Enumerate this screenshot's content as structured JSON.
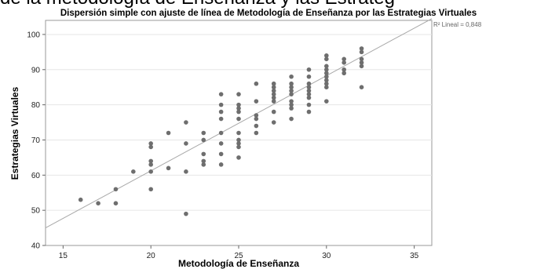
{
  "header_fragment": "de la metodología de Enseñanza y las Estrateg",
  "chart_data": {
    "type": "scatter",
    "title": "Dispersión simple con ajuste de línea de Metodología de Enseñanza por las Estrategias Virtuales",
    "xlabel": "Metodología de Enseñanza",
    "ylabel": "Estrategias Virtuales",
    "xlim": [
      14,
      36
    ],
    "ylim": [
      40,
      104
    ],
    "xticks": [
      15,
      20,
      25,
      30,
      35
    ],
    "yticks": [
      40,
      50,
      60,
      70,
      80,
      90,
      100
    ],
    "grid": "horizontal",
    "fit_line": {
      "label": "R² Lineal = 0,848",
      "x": [
        14,
        36
      ],
      "y": [
        45.0,
        104.5
      ]
    },
    "colors": {
      "points": "#6e6e6e",
      "line": "#a8a8a8",
      "grid": "#e6e6e6"
    },
    "points": [
      [
        16,
        53
      ],
      [
        17,
        52
      ],
      [
        18,
        52
      ],
      [
        18,
        56
      ],
      [
        19,
        61
      ],
      [
        20,
        56
      ],
      [
        20,
        61
      ],
      [
        20,
        63
      ],
      [
        20,
        64
      ],
      [
        20,
        68
      ],
      [
        20,
        69
      ],
      [
        21,
        62
      ],
      [
        21,
        72
      ],
      [
        22,
        49
      ],
      [
        22,
        61
      ],
      [
        22,
        69
      ],
      [
        22,
        75
      ],
      [
        23,
        63
      ],
      [
        23,
        64
      ],
      [
        23,
        66
      ],
      [
        23,
        70
      ],
      [
        23,
        72
      ],
      [
        24,
        63
      ],
      [
        24,
        66
      ],
      [
        24,
        69
      ],
      [
        24,
        72
      ],
      [
        24,
        76
      ],
      [
        24,
        78
      ],
      [
        24,
        80
      ],
      [
        24,
        83
      ],
      [
        25,
        65
      ],
      [
        25,
        68
      ],
      [
        25,
        69
      ],
      [
        25,
        70
      ],
      [
        25,
        72
      ],
      [
        25,
        76
      ],
      [
        25,
        78
      ],
      [
        25,
        79
      ],
      [
        25,
        80
      ],
      [
        25,
        83
      ],
      [
        26,
        72
      ],
      [
        26,
        74
      ],
      [
        26,
        76
      ],
      [
        26,
        77
      ],
      [
        26,
        81
      ],
      [
        26,
        86
      ],
      [
        27,
        75
      ],
      [
        27,
        78
      ],
      [
        27,
        81
      ],
      [
        27,
        82
      ],
      [
        27,
        83
      ],
      [
        27,
        84
      ],
      [
        27,
        85
      ],
      [
        27,
        86
      ],
      [
        28,
        76
      ],
      [
        28,
        79
      ],
      [
        28,
        80
      ],
      [
        28,
        81
      ],
      [
        28,
        83
      ],
      [
        28,
        84
      ],
      [
        28,
        85
      ],
      [
        28,
        86
      ],
      [
        28,
        88
      ],
      [
        29,
        78
      ],
      [
        29,
        80
      ],
      [
        29,
        82
      ],
      [
        29,
        83
      ],
      [
        29,
        84
      ],
      [
        29,
        85
      ],
      [
        29,
        86
      ],
      [
        29,
        88
      ],
      [
        29,
        90
      ],
      [
        30,
        81
      ],
      [
        30,
        85
      ],
      [
        30,
        86
      ],
      [
        30,
        87
      ],
      [
        30,
        88
      ],
      [
        30,
        89
      ],
      [
        30,
        90
      ],
      [
        30,
        91
      ],
      [
        30,
        93
      ],
      [
        30,
        94
      ],
      [
        31,
        89
      ],
      [
        31,
        90
      ],
      [
        31,
        92
      ],
      [
        31,
        93
      ],
      [
        32,
        85
      ],
      [
        32,
        91
      ],
      [
        32,
        92
      ],
      [
        32,
        93
      ],
      [
        32,
        95
      ],
      [
        32,
        96
      ]
    ]
  }
}
